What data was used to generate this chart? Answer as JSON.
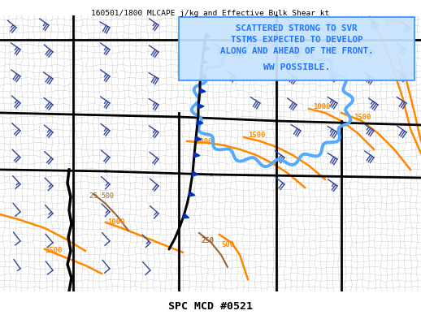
{
  "title_top": "160501/1800 MLCAPE j/kg and Effective Bulk Shear kt",
  "title_bottom": "SPC MCD #0521",
  "annotation_lines": [
    "SCATTERED STRONG TO SVR",
    "TSTMS EXPECTED TO DEVELOP",
    "ALONG AND AHEAD OF THE FRONT.",
    "",
    "WW POSSIBLE."
  ],
  "fig_bg": "#ffffff",
  "map_bg": "#ffffff",
  "annotation_bg": "#c8e4ff",
  "annotation_text_color": "#2277ff",
  "annotation_border_color": "#4499ff",
  "top_title_color": "#000000",
  "bottom_title_color": "#000000",
  "orange_color": "#ff8800",
  "brown_color": "#996633",
  "blue_front_color": "#0055cc",
  "county_line_color": "#aaaaaa",
  "state_line_color": "#000000",
  "barb_color": "#334499",
  "mcd_color": "#55aaff",
  "front_color": "#000000",
  "front_pip_color": "#0033bb"
}
